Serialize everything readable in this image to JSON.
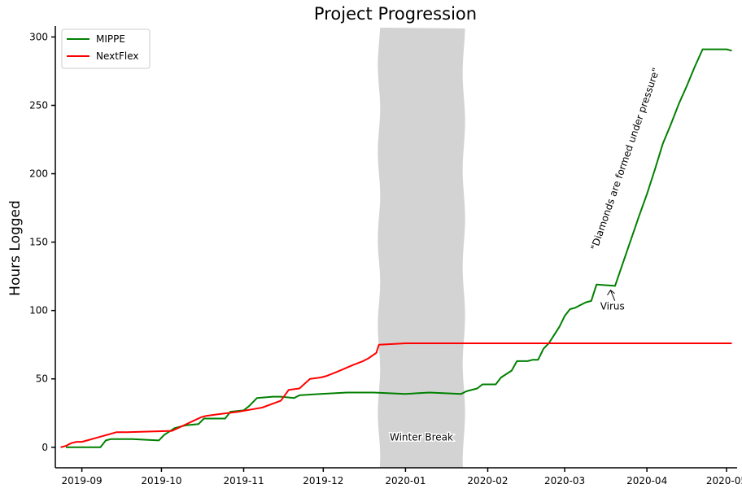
{
  "chart_data": {
    "type": "line",
    "title": "Project Progression",
    "xlabel": "",
    "ylabel": "Hours Logged",
    "x_range": [
      "2019-08-22",
      "2020-05-05"
    ],
    "ylim": [
      -15,
      308
    ],
    "x_ticks": [
      "2019-09",
      "2019-10",
      "2019-11",
      "2019-12",
      "2020-01",
      "2020-02",
      "2020-03",
      "2020-04",
      "2020-05"
    ],
    "y_ticks": [
      0,
      50,
      100,
      150,
      200,
      250,
      300
    ],
    "grid": false,
    "legend": "top-left",
    "colors": {
      "MIPPE": "#008000",
      "NextFlex": "#ff0000",
      "winter_break": "#d3d3d3"
    },
    "series": [
      {
        "name": "MIPPE",
        "x": [
          "2019-08-26",
          "2019-08-31",
          "2019-09-08",
          "2019-09-10",
          "2019-09-12",
          "2019-09-20",
          "2019-09-30",
          "2019-10-02",
          "2019-10-06",
          "2019-10-10",
          "2019-10-15",
          "2019-10-17",
          "2019-10-25",
          "2019-10-27",
          "2019-11-01",
          "2019-11-03",
          "2019-11-06",
          "2019-11-12",
          "2019-11-15",
          "2019-11-20",
          "2019-11-22",
          "2019-11-30",
          "2019-12-10",
          "2019-12-20",
          "2020-01-01",
          "2020-01-10",
          "2020-01-22",
          "2020-01-24",
          "2020-01-28",
          "2020-01-30",
          "2020-02-04",
          "2020-02-06",
          "2020-02-10",
          "2020-02-12",
          "2020-02-16",
          "2020-02-18",
          "2020-02-20",
          "2020-02-22",
          "2020-02-24",
          "2020-02-26",
          "2020-02-28",
          "2020-03-01",
          "2020-03-03",
          "2020-03-05",
          "2020-03-07",
          "2020-03-09",
          "2020-03-11",
          "2020-03-13",
          "2020-03-20",
          "2020-03-23",
          "2020-03-26",
          "2020-03-29",
          "2020-04-01",
          "2020-04-04",
          "2020-04-07",
          "2020-04-10",
          "2020-04-13",
          "2020-04-16",
          "2020-04-19",
          "2020-04-22",
          "2020-04-25",
          "2020-04-28",
          "2020-05-01",
          "2020-05-03"
        ],
        "y": [
          0,
          0,
          0,
          5,
          6,
          6,
          5,
          9,
          14,
          16,
          17,
          21,
          21,
          26,
          27,
          30,
          36,
          37,
          37,
          36,
          38,
          39,
          40,
          40,
          39,
          40,
          39,
          41,
          43,
          46,
          46,
          51,
          56,
          63,
          63,
          64,
          64,
          72,
          76,
          82,
          88,
          96,
          101,
          102,
          104,
          106,
          107,
          119,
          118,
          135,
          152,
          169,
          185,
          203,
          222,
          236,
          251,
          264,
          278,
          291,
          291,
          291,
          291,
          290
        ]
      },
      {
        "name": "NextFlex",
        "x": [
          "2019-08-24",
          "2019-08-26",
          "2019-08-28",
          "2019-08-30",
          "2019-09-01",
          "2019-09-03",
          "2019-09-14",
          "2019-09-16",
          "2019-09-18",
          "2019-10-05",
          "2019-10-16",
          "2019-10-18",
          "2019-10-22",
          "2019-10-26",
          "2019-10-30",
          "2019-11-02",
          "2019-11-05",
          "2019-11-08",
          "2019-11-15",
          "2019-11-18",
          "2019-11-22",
          "2019-11-26",
          "2019-11-30",
          "2019-12-02",
          "2019-12-06",
          "2019-12-12",
          "2019-12-16",
          "2019-12-18",
          "2019-12-21",
          "2019-12-22",
          "2020-01-01",
          "2020-02-01",
          "2020-03-01",
          "2020-04-01",
          "2020-05-03"
        ],
        "y": [
          0,
          1,
          3,
          4,
          4,
          5,
          11,
          11,
          11,
          12,
          22,
          23,
          24,
          25,
          26,
          27,
          28,
          29,
          34,
          42,
          43,
          50,
          51,
          52,
          55,
          60,
          63,
          65,
          69,
          75,
          76,
          76,
          76,
          76,
          76
        ]
      }
    ],
    "shaded_regions": [
      {
        "label": "Winter Break",
        "x_start": "2019-12-22",
        "x_end": "2020-01-23"
      }
    ],
    "annotations": [
      {
        "text": "Virus",
        "x": "2020-03-18",
        "y": 116,
        "text_x": "2020-03-19",
        "text_y": 100
      },
      {
        "text": "\"Diamonds are formed under pressure\"",
        "x": "2020-03-25",
        "y": 210
      }
    ]
  }
}
